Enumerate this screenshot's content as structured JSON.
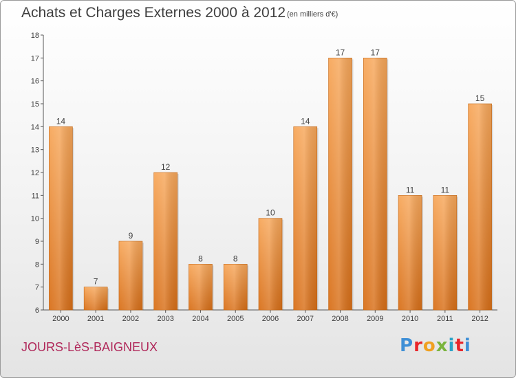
{
  "title": "Achats et Charges Externes 2000 à 2012",
  "subtitle": "(en milliers d'€)",
  "commune": "JOURS-LèS-BAIGNEUX",
  "logo": {
    "text": "Proxiti",
    "letters": [
      "P",
      "r",
      "o",
      "x",
      "i",
      "t",
      "i"
    ]
  },
  "colors": {
    "bar_light": "#f7a75a",
    "bar_dark": "#d86f18",
    "title": "#404040",
    "commune": "#b0285a"
  },
  "chart_data": {
    "type": "bar",
    "title": "Achats et Charges Externes 2000 à 2012",
    "subtitle": "(en milliers d'€)",
    "categories": [
      "2000",
      "2001",
      "2002",
      "2003",
      "2004",
      "2005",
      "2006",
      "2007",
      "2008",
      "2009",
      "2010",
      "2011",
      "2012"
    ],
    "values": [
      14,
      7,
      9,
      12,
      8,
      8,
      10,
      14,
      17,
      17,
      11,
      11,
      15
    ],
    "ylim": [
      6,
      18
    ],
    "yticks": [
      6,
      7,
      8,
      9,
      10,
      11,
      12,
      13,
      14,
      15,
      16,
      17,
      18
    ],
    "grid": false,
    "xlabel": "",
    "ylabel": ""
  }
}
